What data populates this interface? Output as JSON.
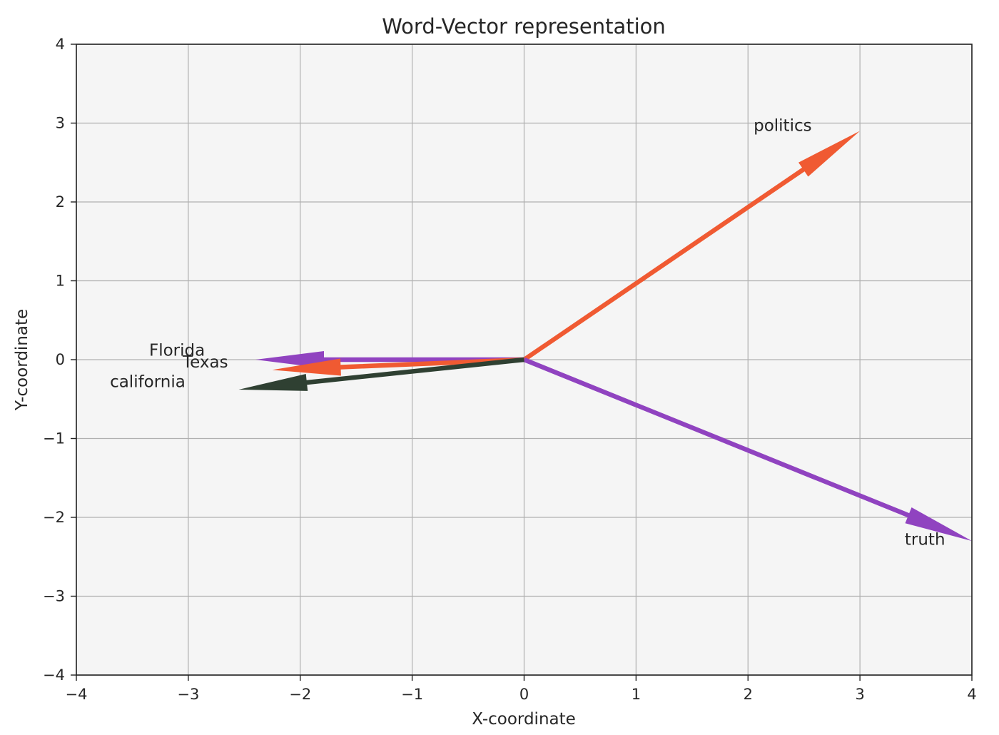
{
  "chart_data": {
    "type": "quiver",
    "title": "Word-Vector representation",
    "xlabel": "X-coordinate",
    "ylabel": "Y-coordinate",
    "xlim": [
      -4,
      4
    ],
    "ylim": [
      -4,
      4
    ],
    "xticks": [
      "−4",
      "−3",
      "−2",
      "−1",
      "0",
      "1",
      "2",
      "3",
      "4"
    ],
    "yticks": [
      "−4",
      "−3",
      "−2",
      "−1",
      "0",
      "1",
      "2",
      "3",
      "4"
    ],
    "grid": true,
    "background": "#f5f5f5",
    "vectors": [
      {
        "word": "politics",
        "x": 3.0,
        "y": 2.9,
        "color": "#f05a32",
        "label_pos": [
          2.05,
          2.9
        ]
      },
      {
        "word": "truth",
        "x": 4.0,
        "y": -2.3,
        "color": "#9043c0",
        "label_pos": [
          3.4,
          -2.35
        ]
      },
      {
        "word": "Florida",
        "x": -2.4,
        "y": 0.0,
        "color": "#9043c0",
        "label_pos": [
          -3.35,
          0.05
        ]
      },
      {
        "word": "Texas",
        "x": -2.25,
        "y": -0.13,
        "color": "#f05a32",
        "label_pos": [
          -3.05,
          -0.1
        ]
      },
      {
        "word": "california",
        "x": -2.55,
        "y": -0.38,
        "color": "#2f4032",
        "label_pos": [
          -3.7,
          -0.35
        ]
      }
    ]
  }
}
